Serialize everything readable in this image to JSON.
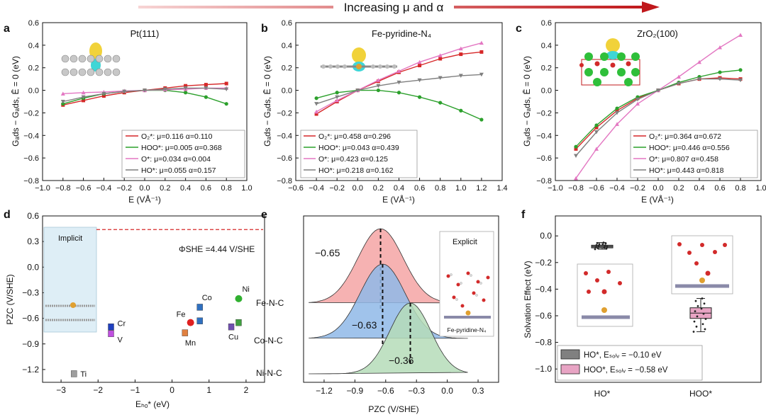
{
  "header": {
    "title": "Increasing μ and α"
  },
  "panels": {
    "a": {
      "letter": "a",
      "title": "Pt(111)",
      "xlabel": "E (VÅ⁻¹)",
      "ylabel": "Gₐds − Gₐds, Ē = 0 (eV)",
      "xticks": [
        "−1.0",
        "−0.8",
        "−0.6",
        "−0.4",
        "−0.2",
        "0.0",
        "0.2",
        "0.4",
        "0.6",
        "0.8",
        "1.0"
      ],
      "yticks": [
        "0.6",
        "0.4",
        "0.2",
        "0.0",
        "−0.2",
        "−0.4",
        "−0.6",
        "−0.8"
      ],
      "legend": [
        "O₂*: μ=0.116 α=0.110",
        "HOO*: μ=0.005 α=0.368",
        "O*: μ=0.034 α=0.004",
        "HO*: μ=0.055 α=0.157"
      ]
    },
    "b": {
      "letter": "b",
      "title": "Fe-pyridine-N₄",
      "xlabel": "E (VÅ⁻¹)",
      "ylabel": "Gₐds − Gₐds, Ē = 0 (eV)",
      "xticks": [
        "−0.6",
        "−0.4",
        "−0.2",
        "0.0",
        "0.2",
        "0.4",
        "0.6",
        "0.8",
        "1.0",
        "1.2",
        "1.4"
      ],
      "yticks": [
        "0.6",
        "0.4",
        "0.2",
        "0.0",
        "−0.2",
        "−0.4",
        "−0.6",
        "−0.8"
      ],
      "legend": [
        "O₂*: μ=0.458 α=0.296",
        "HOO*: μ=0.043 α=0.439",
        "O*: μ=0.423 α=0.125",
        "HO*: μ=0.218 α=0.162"
      ]
    },
    "c": {
      "letter": "c",
      "title": "ZrO₂(100)",
      "xlabel": "E (VÅ⁻¹)",
      "ylabel": "Gₐds − Gₐds, Ē = 0 (eV)",
      "xticks": [
        "−1.0",
        "−0.8",
        "−0.6",
        "−0.4",
        "−0.2",
        "0.0",
        "0.2",
        "0.4",
        "0.6",
        "0.8",
        "1.0"
      ],
      "yticks": [
        "0.6",
        "0.4",
        "0.2",
        "0.0",
        "−0.2",
        "−0.4",
        "−0.6",
        "−0.8"
      ],
      "legend": [
        "O₂*: μ=0.364 α=0.672",
        "HOO*: μ=0.446 α=0.556",
        "O*: μ=0.807 α=0.458",
        "HO*: μ=0.443 α=0.818"
      ]
    },
    "d": {
      "letter": "d",
      "xlabel": "Eₕₒ* (eV)",
      "ylabel": "PZC (V/SHE)",
      "inset_label": "Implicit",
      "phi_label": "ΦSHE =4.44 V/SHE",
      "xticks": [
        "−3",
        "−2",
        "−1",
        "0",
        "1",
        "2"
      ],
      "yticks": [
        "0.6",
        "0.3",
        "0.0",
        "−0.3",
        "−0.6",
        "−0.9",
        "−1.2"
      ]
    },
    "e": {
      "letter": "e",
      "xlabel": "PZC (V/SHE)",
      "inset_label": "Explicit",
      "inset_caption": "Fe-pyridine-N₄",
      "rows": [
        "Fe-N-C",
        "Co-N-C",
        "Ni-N-C"
      ],
      "peak_labels": [
        "−0.65",
        "−0.63",
        "−0.36"
      ],
      "xticks": [
        "−1.2",
        "−0.9",
        "−0.6",
        "−0.3",
        "0.0",
        "0.3"
      ]
    },
    "f": {
      "letter": "f",
      "ylabel": "Solvation Effect (eV)",
      "categories": [
        "HO*",
        "HOO*"
      ],
      "legend": [
        "HO*, Eₛₒₗᵥ = −0.10 eV",
        "HOO*, Eₛₒₗᵥ = −0.58 eV"
      ],
      "yticks": [
        "0.0",
        "−0.2",
        "−0.4",
        "−0.6",
        "−0.8",
        "−1.0"
      ]
    }
  },
  "colors": {
    "O2": "#d62728",
    "HOO": "#2ca02c",
    "O": "#e377c2",
    "HO": "#7f7f7f",
    "dashed": "#d62728",
    "fill_fe": "#f4a5a5",
    "fill_co": "#8fb8e8",
    "fill_ni": "#b5dcb8",
    "box_ho": "#808080",
    "box_hoo": "#e8a4c4"
  },
  "chart_data": [
    {
      "type": "line",
      "panel": "a",
      "xlim": [
        -1.0,
        1.0
      ],
      "ylim": [
        -0.8,
        0.6
      ],
      "x": [
        -0.8,
        -0.6,
        -0.4,
        -0.2,
        0.0,
        0.2,
        0.4,
        0.6,
        0.8
      ],
      "series": [
        {
          "name": "O2*",
          "values": [
            -0.13,
            -0.09,
            -0.05,
            -0.02,
            0.0,
            0.02,
            0.04,
            0.05,
            0.06
          ]
        },
        {
          "name": "HOO*",
          "values": [
            -0.12,
            -0.07,
            -0.03,
            -0.01,
            0.0,
            0.0,
            -0.02,
            -0.06,
            -0.12
          ]
        },
        {
          "name": "O*",
          "values": [
            -0.03,
            -0.02,
            -0.015,
            -0.005,
            0.0,
            0.005,
            0.01,
            0.02,
            0.02
          ]
        },
        {
          "name": "HO*",
          "values": [
            -0.1,
            -0.06,
            -0.03,
            -0.01,
            0.0,
            0.01,
            0.02,
            0.02,
            0.01
          ]
        }
      ]
    },
    {
      "type": "line",
      "panel": "b",
      "xlim": [
        -0.6,
        1.4
      ],
      "ylim": [
        -0.8,
        0.6
      ],
      "x": [
        -0.4,
        -0.2,
        0.0,
        0.2,
        0.4,
        0.6,
        0.8,
        1.0,
        1.2
      ],
      "series": [
        {
          "name": "O2*",
          "values": [
            -0.21,
            -0.1,
            0.0,
            0.08,
            0.16,
            0.22,
            0.28,
            0.32,
            0.34
          ]
        },
        {
          "name": "HOO*",
          "values": [
            -0.07,
            -0.02,
            0.0,
            0.0,
            -0.02,
            -0.06,
            -0.11,
            -0.18,
            -0.26
          ]
        },
        {
          "name": "O*",
          "values": [
            -0.19,
            -0.09,
            0.0,
            0.09,
            0.17,
            0.25,
            0.31,
            0.37,
            0.42
          ]
        },
        {
          "name": "HO*",
          "values": [
            -0.12,
            -0.06,
            0.0,
            0.04,
            0.07,
            0.09,
            0.11,
            0.13,
            0.14
          ]
        }
      ]
    },
    {
      "type": "line",
      "panel": "c",
      "xlim": [
        -1.0,
        1.0
      ],
      "ylim": [
        -0.8,
        0.6
      ],
      "x": [
        -0.8,
        -0.6,
        -0.4,
        -0.2,
        0.0,
        0.2,
        0.4,
        0.6,
        0.8
      ],
      "series": [
        {
          "name": "O2*",
          "values": [
            -0.52,
            -0.33,
            -0.18,
            -0.07,
            0.0,
            0.06,
            0.1,
            0.11,
            0.1
          ]
        },
        {
          "name": "HOO*",
          "values": [
            -0.5,
            -0.31,
            -0.16,
            -0.06,
            0.0,
            0.07,
            0.12,
            0.16,
            0.18
          ]
        },
        {
          "name": "O*",
          "values": [
            -0.78,
            -0.52,
            -0.3,
            -0.12,
            0.0,
            0.12,
            0.25,
            0.38,
            0.49
          ]
        },
        {
          "name": "HO*",
          "values": [
            -0.58,
            -0.37,
            -0.2,
            -0.08,
            0.0,
            0.06,
            0.1,
            0.1,
            0.09
          ]
        }
      ]
    },
    {
      "type": "scatter",
      "panel": "d",
      "xlim": [
        -3.5,
        2.5
      ],
      "ylim": [
        -1.35,
        0.6
      ],
      "hline": 0.44,
      "points": [
        {
          "label": "Ti",
          "x": -2.65,
          "y": -1.25,
          "color": "#9e9e9e"
        },
        {
          "label": "V",
          "x": -1.65,
          "y": -0.78,
          "color": "#c050e0"
        },
        {
          "label": "Cr",
          "x": -1.65,
          "y": -0.7,
          "color": "#2040c0"
        },
        {
          "label": "Mn",
          "x": 0.35,
          "y": -0.77,
          "color": "#e08040"
        },
        {
          "label": "Fe",
          "x": 0.5,
          "y": -0.65,
          "color": "#e02020"
        },
        {
          "label": "Co",
          "x": 0.75,
          "y": -0.47,
          "color": "#3070c0"
        },
        {
          "label": "Co",
          "x": 0.75,
          "y": -0.63,
          "color": "#3070c0"
        },
        {
          "label": "Cu",
          "x": 1.6,
          "y": -0.7,
          "color": "#7050b0"
        },
        {
          "label": "Cu",
          "x": 1.8,
          "y": -0.65,
          "color": "#40a040"
        },
        {
          "label": "Ni",
          "x": 1.8,
          "y": -0.37,
          "color": "#30b030"
        }
      ]
    },
    {
      "type": "area",
      "panel": "e",
      "xlim": [
        -1.4,
        0.5
      ],
      "series": [
        {
          "name": "Fe-N-C",
          "mean": -0.65,
          "sd": 0.22
        },
        {
          "name": "Co-N-C",
          "mean": -0.63,
          "sd": 0.22
        },
        {
          "name": "Ni-N-C",
          "mean": -0.36,
          "sd": 0.2
        }
      ]
    },
    {
      "type": "box",
      "panel": "f",
      "ylim": [
        -1.1,
        0.15
      ],
      "series": [
        {
          "name": "HO*",
          "median": -0.08,
          "q1": -0.09,
          "q3": -0.07,
          "min": -0.1,
          "max": -0.05
        },
        {
          "name": "HOO*",
          "median": -0.58,
          "q1": -0.62,
          "q3": -0.54,
          "min": -0.72,
          "max": -0.47
        }
      ]
    }
  ]
}
